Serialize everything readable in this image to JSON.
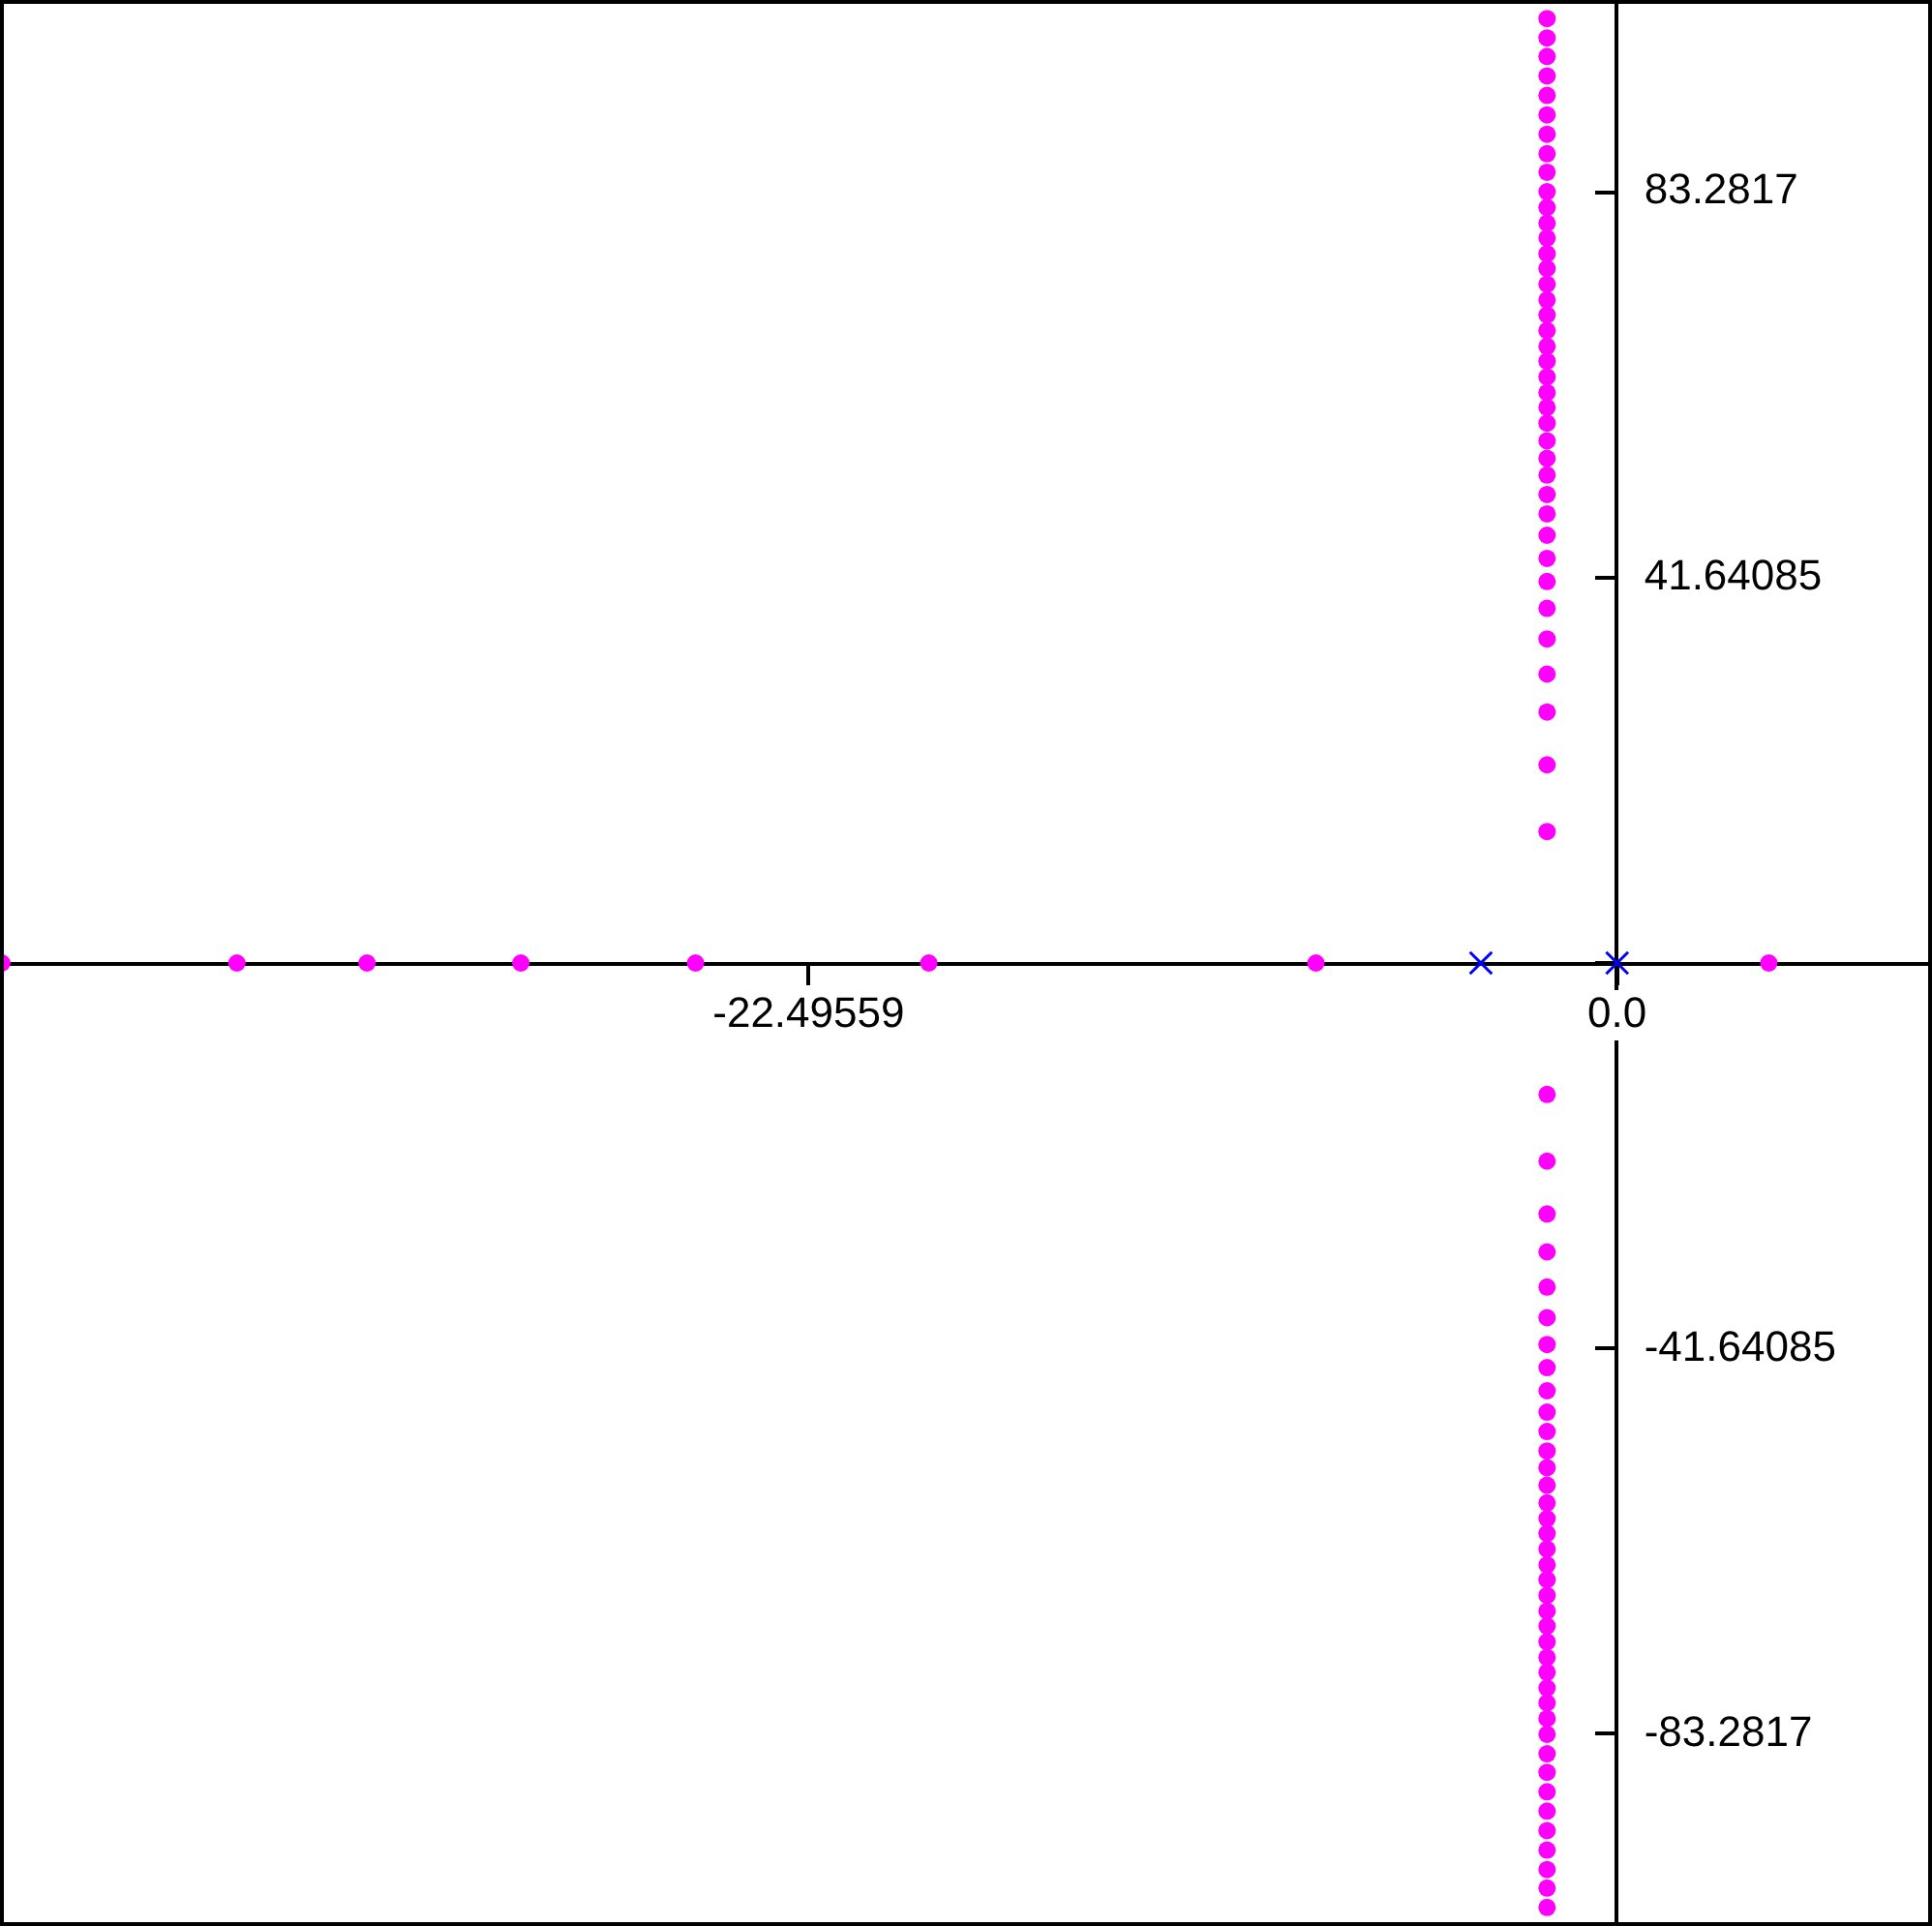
{
  "chart_data": {
    "type": "scatter",
    "xlim": [
      -44.99118,
      8.76
    ],
    "ylim": [
      -104,
      104
    ],
    "xticks": [
      {
        "value": -22.49559,
        "label": "-22.49559"
      },
      {
        "value": 0,
        "label": "0.0"
      }
    ],
    "yticks": [
      {
        "value": -83.2817,
        "label": "-83.2817"
      },
      {
        "value": -41.64085,
        "label": "-41.64085"
      },
      {
        "value": 0,
        "label": null
      },
      {
        "value": 41.64085,
        "label": "41.64085"
      },
      {
        "value": 83.2817,
        "label": "83.2817"
      }
    ],
    "grid": false,
    "series": [
      {
        "color": "#ff00ff",
        "marker": "circle",
        "x": [
          -44.94,
          -38.4,
          -34.78,
          -30.5,
          -25.64,
          -19.15,
          -8.38,
          4.22,
          -1.95,
          -1.95,
          -1.95,
          -1.95,
          -1.95,
          -1.95,
          -1.95,
          -1.95,
          -1.95,
          -1.95,
          -1.95,
          -1.95,
          -1.95,
          -1.95,
          -1.95,
          -1.95,
          -1.95,
          -1.95,
          -1.95,
          -1.95,
          -1.95,
          -1.95,
          -1.95,
          -1.95,
          -1.95,
          -1.95,
          -1.95,
          -1.95,
          -1.95,
          -1.95,
          -1.95,
          -1.95,
          -1.95,
          -1.95,
          -1.95,
          -1.95,
          -1.95,
          -1.95,
          -1.95,
          -1.95,
          -1.95,
          -1.95,
          -1.95,
          -1.95,
          -1.95,
          -1.95,
          -1.95,
          -1.95,
          -1.95,
          -1.95,
          -1.95,
          -1.95,
          -1.95,
          -1.95,
          -1.95,
          -1.95,
          -1.95,
          -1.95,
          -1.95,
          -1.95,
          -1.95,
          -1.95,
          -1.95,
          -1.95,
          -1.95,
          -1.95,
          -1.95,
          -1.95,
          -1.95,
          -1.95,
          -1.95,
          -1.95,
          -1.95,
          -1.95,
          -1.95,
          -1.95,
          -1.95,
          -1.95
        ],
        "values": [
          0,
          0,
          0,
          0,
          0,
          0,
          0,
          0,
          14.2,
          21.4,
          27.1,
          31.2,
          35.0,
          38.3,
          41.2,
          43.7,
          46.2,
          48.5,
          50.6,
          52.7,
          54.5,
          56.4,
          58.3,
          60.0,
          61.6,
          63.3,
          65.0,
          66.6,
          68.3,
          70.0,
          71.6,
          73.3,
          75.0,
          76.6,
          78.3,
          79.9,
          81.6,
          83.3,
          85.4,
          87.4,
          89.5,
          91.6,
          93.7,
          95.8,
          97.9,
          99.9,
          102.0,
          -14.2,
          -21.4,
          -27.1,
          -31.2,
          -35.0,
          -38.3,
          -41.2,
          -43.7,
          -46.2,
          -48.5,
          -50.6,
          -52.7,
          -54.5,
          -56.4,
          -58.3,
          -60.0,
          -61.6,
          -63.3,
          -65.0,
          -66.6,
          -68.3,
          -70.0,
          -71.6,
          -73.3,
          -75.0,
          -76.6,
          -78.3,
          -79.9,
          -81.6,
          -83.3,
          -85.4,
          -87.4,
          -89.5,
          -91.6,
          -93.7,
          -95.8,
          -97.9,
          -99.9,
          -102.0
        ]
      },
      {
        "color": "#0000ff",
        "marker": "cross",
        "x": [
          -3.79,
          0
        ],
        "values": [
          0,
          0
        ]
      }
    ]
  }
}
